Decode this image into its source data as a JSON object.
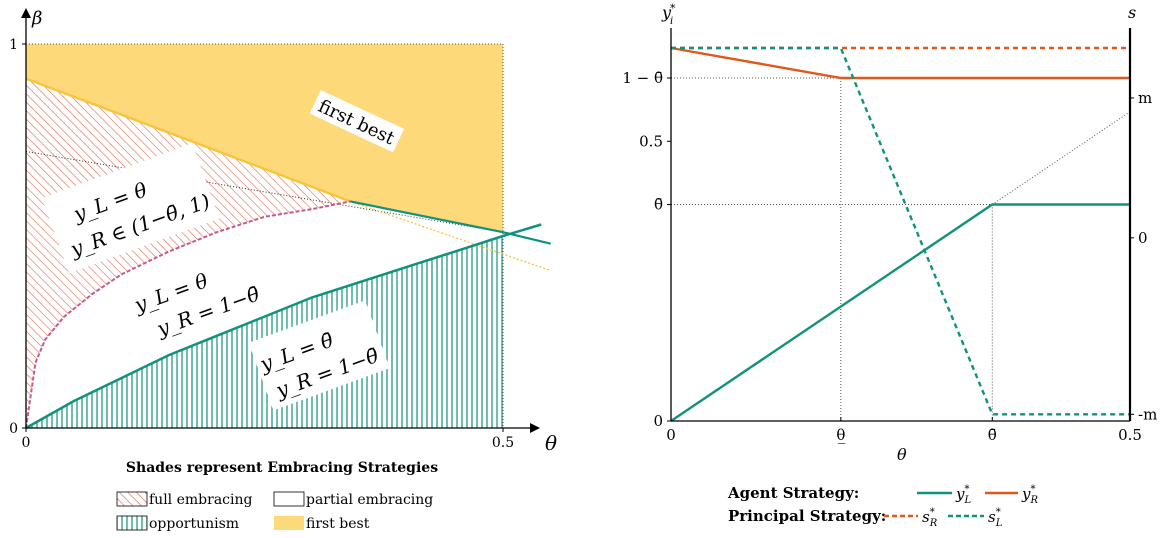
{
  "colors": {
    "green": "#11927a",
    "orange": "#e0581c",
    "gold": "#f7c43a",
    "gold_fill": "#fdd97a",
    "hatch_red": "#e06a50",
    "pink_dash": "#c75a8a"
  },
  "chart_data": [
    {
      "type": "area",
      "xlabel": "θ",
      "ylabel": "β",
      "xlim": [
        0,
        0.5
      ],
      "ylim": [
        0,
        1
      ],
      "x_ticks": [
        {
          "v": 0,
          "label": "0"
        },
        {
          "v": 0.5,
          "label": "0.5"
        }
      ],
      "y_ticks": [
        {
          "v": 0,
          "label": "0"
        },
        {
          "v": 1,
          "label": "1"
        }
      ],
      "boundaries": {
        "first_best_line": {
          "x": [
            0,
            0.34
          ],
          "y": [
            0.91,
            0.59
          ]
        },
        "first_best_line_extension": {
          "x": [
            0.34,
            0.55
          ],
          "y": [
            0.59,
            0.41
          ]
        },
        "upper_curve": {
          "x": [
            0.34,
            0.5,
            0.55
          ],
          "y": [
            0.59,
            0.51,
            0.48
          ]
        },
        "full_embracing_lower": {
          "x": [
            0,
            0.01,
            0.02,
            0.04,
            0.07,
            0.1,
            0.15,
            0.2,
            0.25,
            0.3,
            0.34
          ],
          "y": [
            0,
            0.17,
            0.23,
            0.29,
            0.35,
            0.4,
            0.46,
            0.51,
            0.55,
            0.57,
            0.59
          ]
        },
        "opportunism_upper": {
          "x": [
            0,
            0.05,
            0.1,
            0.15,
            0.2,
            0.25,
            0.3,
            0.35,
            0.4,
            0.45,
            0.5,
            0.54
          ],
          "y": [
            0,
            0.07,
            0.13,
            0.19,
            0.24,
            0.29,
            0.34,
            0.38,
            0.42,
            0.46,
            0.5,
            0.53
          ]
        },
        "dotted_line": {
          "x": [
            0,
            0.5
          ],
          "y": [
            0.72,
            0.51
          ]
        }
      },
      "region_labels": {
        "first_best": "first best",
        "full_1": "y_L = θ",
        "full_2": "y_R ∈ (1−θ̄, 1)",
        "partial_1": "y_L = θ",
        "partial_2": "y_R = 1−θ̄",
        "opp_1": "y_L = θ̄",
        "opp_2": "y_R = 1−θ̄"
      },
      "legend_title": "Shades represent Embracing Strategies",
      "legend": [
        "full embracing",
        "partial embracing",
        "opportunism",
        "first best"
      ]
    },
    {
      "type": "line",
      "xlabel": "θ",
      "ylabel_left": "y*_i",
      "ylabel_right": "s",
      "xlim": [
        0,
        0.5
      ],
      "ylim": [
        0,
        1
      ],
      "x_ticks": [
        {
          "v": 0,
          "label": "0"
        },
        {
          "v": 0.185,
          "label": "θ̲"
        },
        {
          "v": 0.35,
          "label": "θ̄"
        },
        {
          "v": 0.5,
          "label": "0.5"
        }
      ],
      "y_ticks_left": [
        {
          "v": 0,
          "label": "0"
        },
        {
          "v": 0.65,
          "label": "θ̄"
        },
        {
          "v": 0.5,
          "label": "0.5"
        },
        {
          "v": 0.35,
          "label": "1 − θ̄"
        }
      ],
      "y_ticks_right": [
        {
          "v": 0.97,
          "label": "m"
        },
        {
          "v": 0.55,
          "label": "0"
        },
        {
          "v": 0.02,
          "label": "-m"
        }
      ],
      "series": [
        {
          "name": "y*_L",
          "x": [
            0,
            0.35,
            0.5
          ],
          "y": [
            0,
            0.65,
            0.65
          ]
        },
        {
          "name": "y*_R",
          "x": [
            0,
            0.185,
            0.5
          ],
          "y": [
            1.12,
            1.03,
            1.03
          ]
        },
        {
          "name": "s*_R",
          "x": [
            0,
            0.5
          ],
          "y": [
            1.12,
            1.12
          ]
        },
        {
          "name": "s*_L",
          "x": [
            0,
            0.185,
            0.35,
            0.5
          ],
          "y": [
            1.12,
            1.12,
            0.02,
            0.02
          ]
        }
      ],
      "legend": {
        "agent_label": "Agent Strategy:",
        "principal_label": "Principal Strategy:",
        "yL": "y*_L",
        "yR": "y*_R",
        "sR": "s*_R",
        "sL": "s*_L"
      }
    }
  ]
}
